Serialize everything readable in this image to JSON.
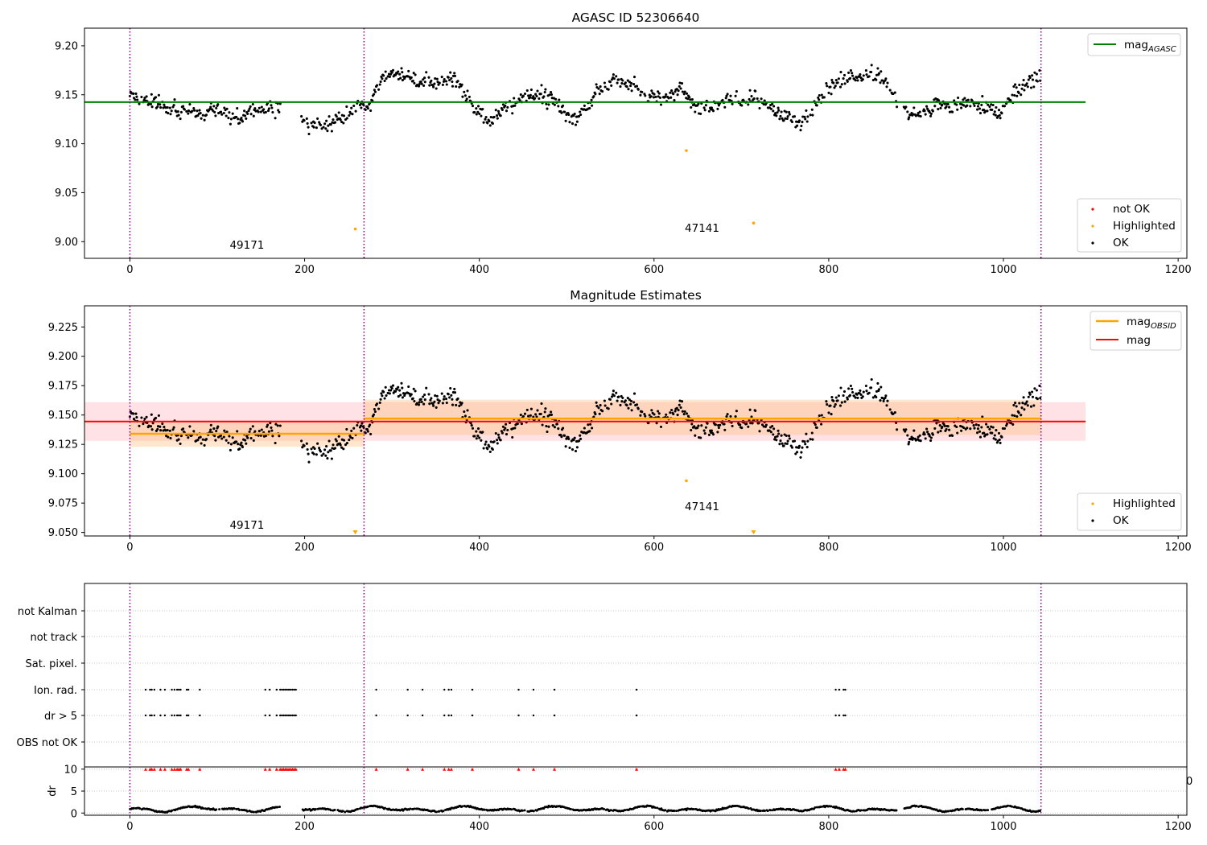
{
  "colors": {
    "agasc_line": "#008000",
    "obsid_line": "#ffa500",
    "mag_line": "#ff0000",
    "obs_divider": "#800080",
    "ok_points": "#000000",
    "highlighted_points": "#ffa500",
    "not_ok_points": "#ff0000",
    "mag_band": "#ffb6c1",
    "obsid_band": "#ffc080",
    "grid": "#b0b0b0"
  },
  "chart_data": [
    {
      "type": "scatter",
      "title": "AGASC ID 52306640",
      "xlim": [
        -52,
        1210
      ],
      "ylim": [
        8.983,
        9.218
      ],
      "xticks": [
        "0",
        "200",
        "400",
        "600",
        "800",
        "1000",
        "1200"
      ],
      "yticks": [
        "9.00",
        "9.05",
        "9.10",
        "9.15",
        "9.20"
      ],
      "xlabel": "",
      "ylabel": "",
      "obs_boundaries": [
        0,
        268,
        1043
      ],
      "annotations": [
        {
          "text": "49171",
          "x": 134,
          "y": 8.993
        },
        {
          "text": "47141",
          "x": 655,
          "y": 9.01
        }
      ],
      "lines": [
        {
          "name": "mag",
          "subscript": "AGASC",
          "y": 9.1425,
          "x_range": [
            -52,
            1094
          ],
          "color": "#008000"
        }
      ],
      "highlighted": [
        {
          "x": 258,
          "y": 9.013
        },
        {
          "x": 637,
          "y": 9.093
        },
        {
          "x": 714,
          "y": 9.019
        }
      ],
      "legend_entries": [
        "not OK",
        "Highlighted",
        "OK"
      ],
      "legend_placement": "lower-right",
      "line_legend_placement": "upper-right"
    },
    {
      "type": "scatter",
      "title": "Magnitude Estimates",
      "xlim": [
        -52,
        1210
      ],
      "ylim": [
        9.047,
        9.243
      ],
      "xticks": [
        "0",
        "200",
        "400",
        "600",
        "800",
        "1000",
        "1200"
      ],
      "yticks": [
        "9.050",
        "9.075",
        "9.100",
        "9.125",
        "9.150",
        "9.175",
        "9.200",
        "9.225"
      ],
      "xlabel": "",
      "ylabel": "",
      "obs_boundaries": [
        0,
        268,
        1043
      ],
      "annotations": [
        {
          "text": "49171",
          "x": 134,
          "y": 9.053
        },
        {
          "text": "47141",
          "x": 655,
          "y": 9.069
        }
      ],
      "lines": [
        {
          "name": "mag",
          "subscript": "OBSID",
          "segments": [
            {
              "x_range": [
                0,
                268
              ],
              "y": 9.134,
              "band": [
                9.123,
                9.145
              ]
            },
            {
              "x_range": [
                268,
                1043
              ],
              "y": 9.147,
              "band": [
                9.133,
                9.163
              ]
            }
          ],
          "color": "#ffa500"
        },
        {
          "name": "mag",
          "subscript": "",
          "y": 9.1445,
          "band": [
            9.128,
            9.161
          ],
          "x_range": [
            -52,
            1094
          ],
          "color": "#ff0000"
        }
      ],
      "highlighted": [
        {
          "x": 637,
          "y": 9.094
        }
      ],
      "offscale_markers": [
        {
          "x": 258
        },
        {
          "x": 714
        }
      ],
      "legend_entries": [
        "Highlighted",
        "OK"
      ],
      "legend_placement": "lower-right",
      "line_legend_placement": "upper-right"
    },
    {
      "type": "scatter",
      "title": "",
      "xlim": [
        -52,
        1210
      ],
      "xticks": [
        "0",
        "200",
        "400",
        "600",
        "800",
        "1000",
        "1200"
      ],
      "categories": [
        "not Kalman",
        "not track",
        "Sat. pixel.",
        "Ion. rad.",
        "dr > 5",
        "OBS not OK"
      ],
      "flagged_x": [
        18,
        23,
        25,
        28,
        35,
        40,
        48,
        51,
        54,
        56,
        58,
        65,
        67,
        80,
        155,
        160,
        168,
        172,
        174,
        176,
        178,
        180,
        182,
        184,
        186,
        188,
        190,
        282,
        318,
        335,
        360,
        365,
        368,
        392,
        445,
        462,
        486,
        580,
        808,
        812,
        817,
        819
      ],
      "obs_boundaries": [
        0,
        268,
        1043
      ],
      "dr": {
        "ylabel": "dr",
        "yticks": [
          "0",
          "5",
          "10"
        ],
        "ylim": [
          -0.5,
          10.5
        ],
        "threshold": 10,
        "stray_label": "0"
      }
    }
  ]
}
